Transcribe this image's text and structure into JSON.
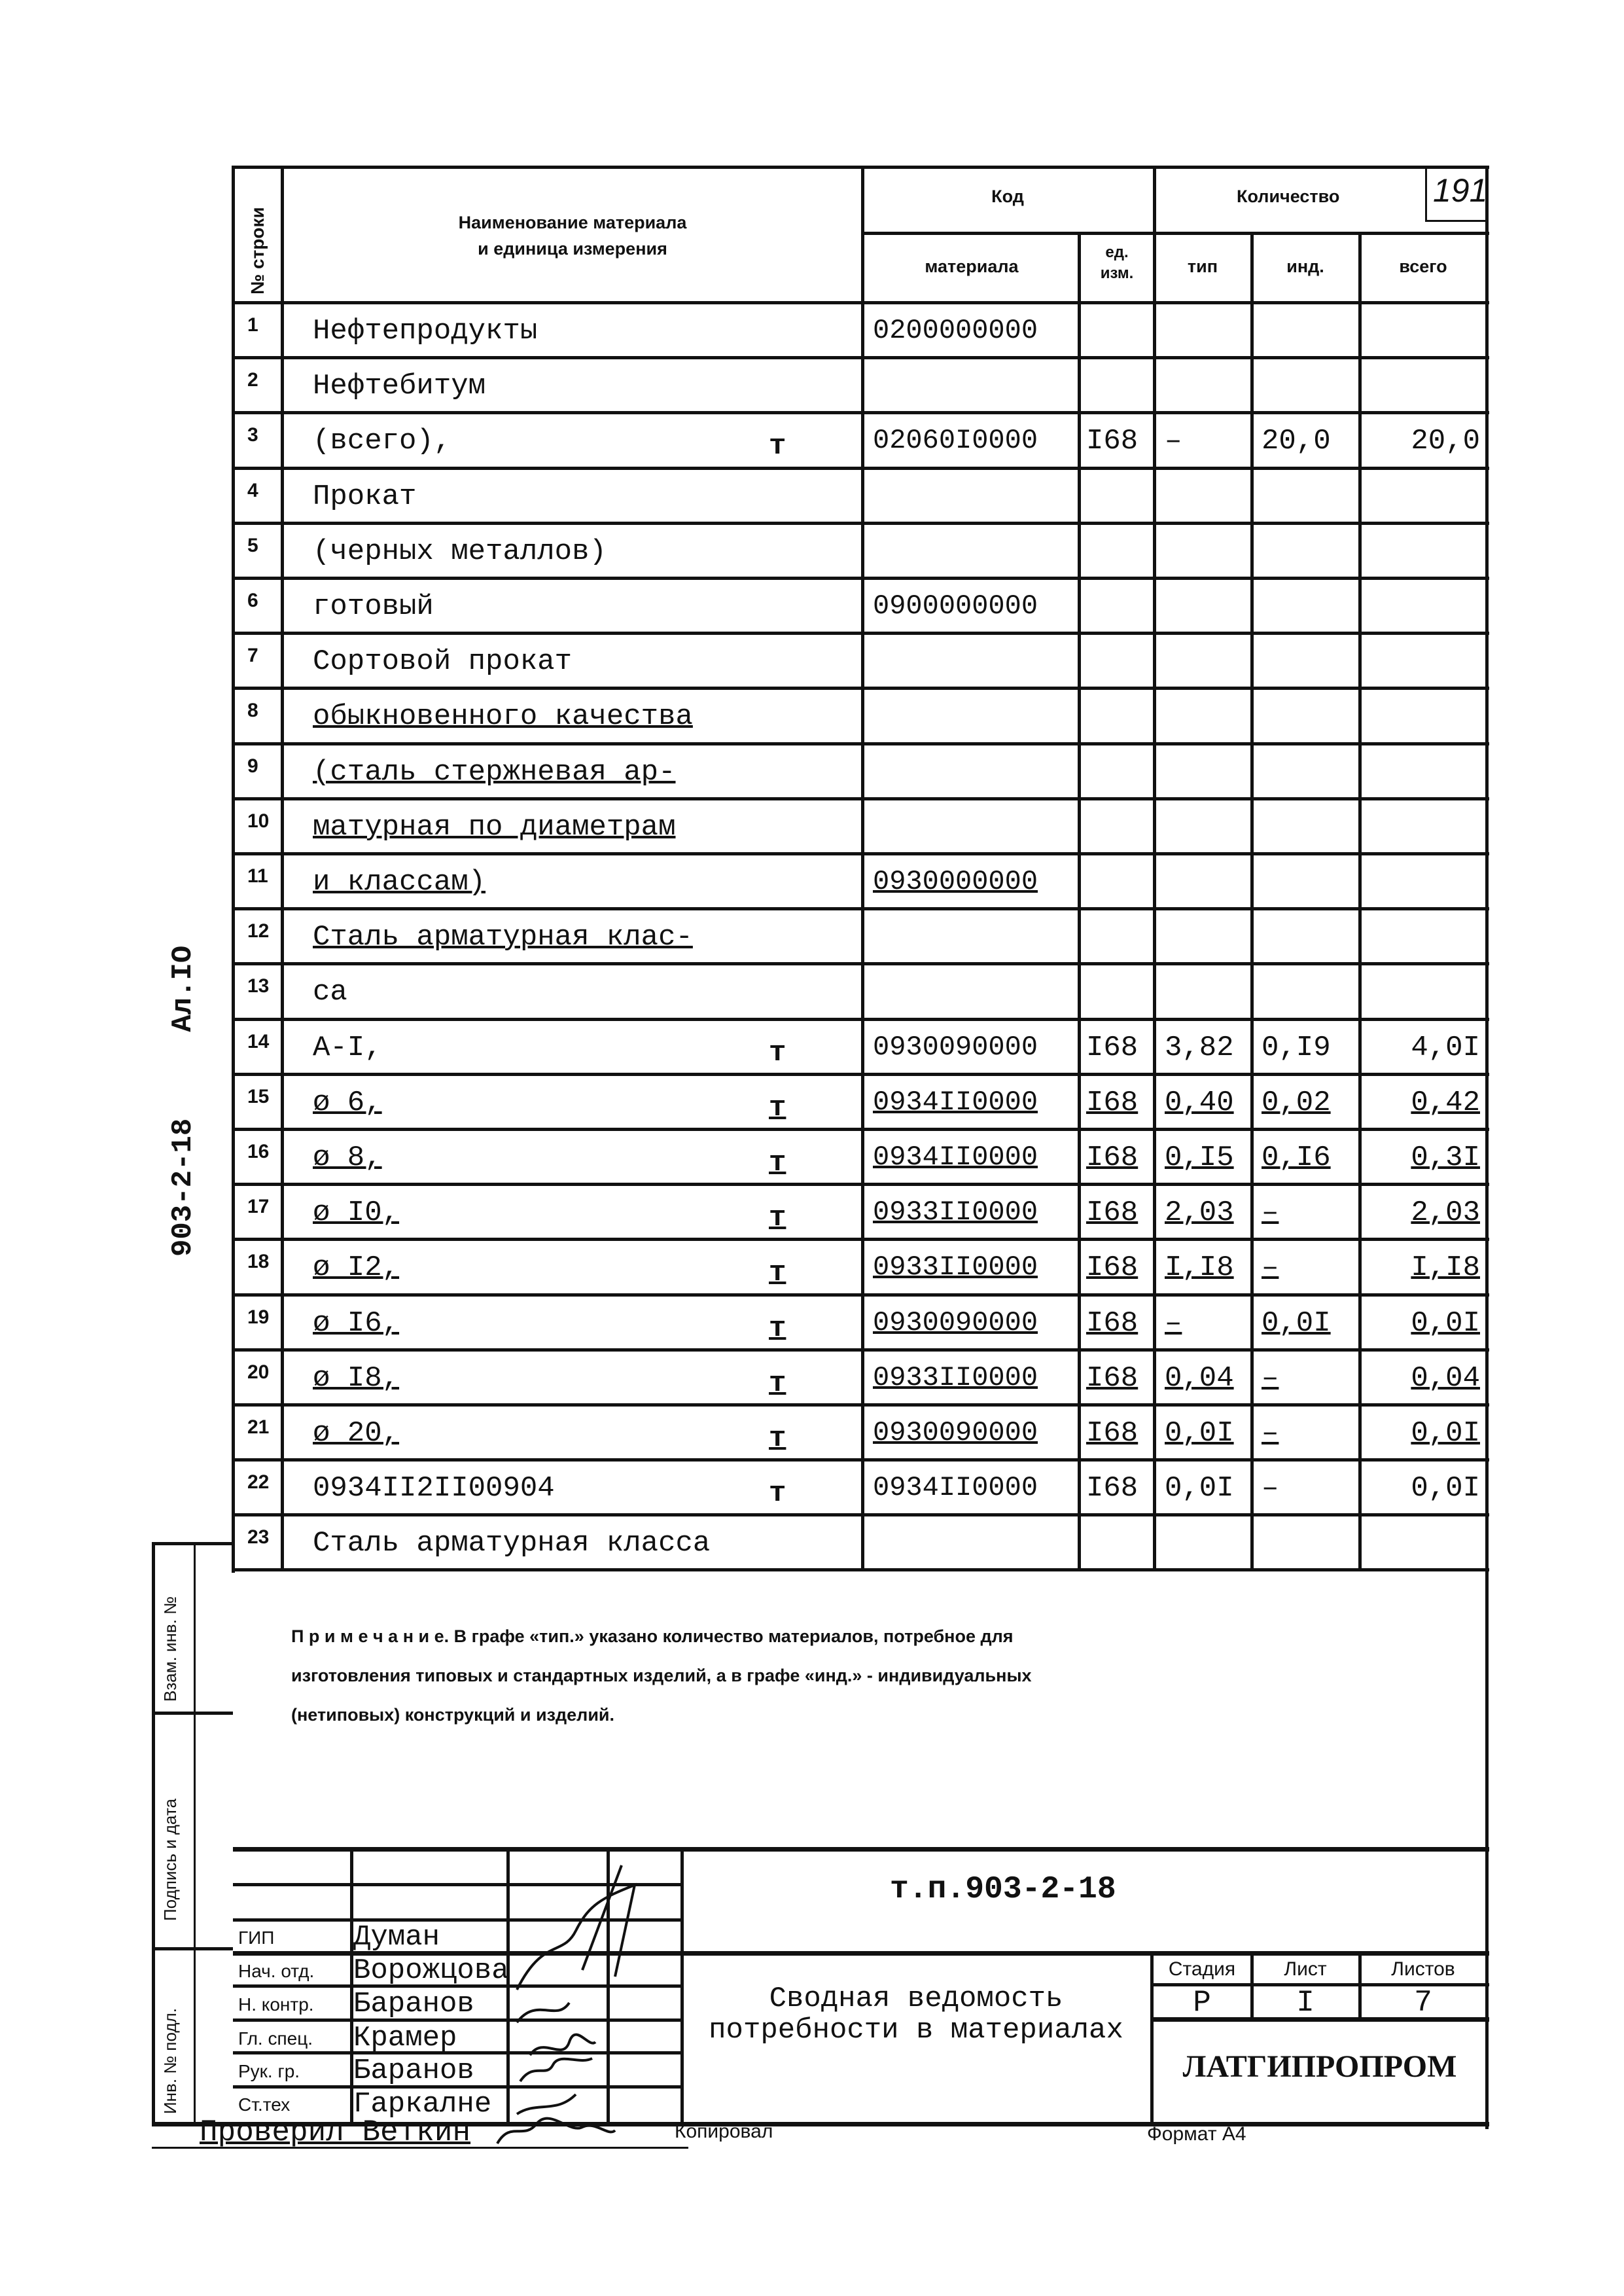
{
  "page_number": "191",
  "side_code": "903-2-18",
  "side_sheet": "Ал.IO",
  "header": {
    "row_no": "№ строки",
    "name": "Наименование материала\nи единица измерения",
    "code": "Код",
    "quantity": "Количество",
    "material": "материала",
    "unit": "ед.\nизм.",
    "typ": "тип",
    "ind": "инд.",
    "total": "всего"
  },
  "rows": [
    {
      "n": "1",
      "name": "Нефтепродукты",
      "u": "",
      "code": "0200000000",
      "unit": "",
      "typ": "",
      "ind": "",
      "total": ""
    },
    {
      "n": "2",
      "name": "Нефтебитум",
      "u": "",
      "code": "",
      "unit": "",
      "typ": "",
      "ind": "",
      "total": ""
    },
    {
      "n": "3",
      "name": "(всего),",
      "u": "т",
      "code": "02060I0000",
      "unit": "I68",
      "typ": "–",
      "ind": "20,0",
      "total": "20,0"
    },
    {
      "n": "4",
      "name": "Прокат",
      "u": "",
      "code": "",
      "unit": "",
      "typ": "",
      "ind": "",
      "total": ""
    },
    {
      "n": "5",
      "name": "(черных металлов)",
      "u": "",
      "code": "",
      "unit": "",
      "typ": "",
      "ind": "",
      "total": ""
    },
    {
      "n": "6",
      "name": "готовый",
      "u": "",
      "code": "0900000000",
      "unit": "",
      "typ": "",
      "ind": "",
      "total": ""
    },
    {
      "n": "7",
      "name": "Сортовой прокат",
      "u": "",
      "code": "",
      "unit": "",
      "typ": "",
      "ind": "",
      "total": ""
    },
    {
      "n": "8",
      "name": "обыкновенного качества",
      "u": "",
      "code": "",
      "unit": "",
      "typ": "",
      "ind": "",
      "total": ""
    },
    {
      "n": "9",
      "name": "(сталь стержневая ар-",
      "u": "",
      "code": "",
      "unit": "",
      "typ": "",
      "ind": "",
      "total": ""
    },
    {
      "n": "10",
      "name": "матурная по диаметрам",
      "u": "",
      "code": "",
      "unit": "",
      "typ": "",
      "ind": "",
      "total": ""
    },
    {
      "n": "11",
      "name": "и классам)",
      "u": "",
      "code": "0930000000",
      "unit": "",
      "typ": "",
      "ind": "",
      "total": ""
    },
    {
      "n": "12",
      "name": "Сталь арматурная клас-",
      "u": "",
      "code": "",
      "unit": "",
      "typ": "",
      "ind": "",
      "total": ""
    },
    {
      "n": "13",
      "name": "са",
      "u": "",
      "code": "",
      "unit": "",
      "typ": "",
      "ind": "",
      "total": ""
    },
    {
      "n": "14",
      "name": "А-I,",
      "u": "т",
      "code": "0930090000",
      "unit": "I68",
      "typ": "3,82",
      "ind": "0,I9",
      "total": "4,0I"
    },
    {
      "n": "15",
      "name": "ø 6,",
      "u": "т",
      "code": "0934II0000",
      "unit": "I68",
      "typ": "0,40",
      "ind": "0,02",
      "total": "0,42"
    },
    {
      "n": "16",
      "name": "ø 8,",
      "u": "т",
      "code": "0934II0000",
      "unit": "I68",
      "typ": "0,I5",
      "ind": "0,I6",
      "total": "0,3I"
    },
    {
      "n": "17",
      "name": "ø I0,",
      "u": "т",
      "code": "0933II0000",
      "unit": "I68",
      "typ": "2,03",
      "ind": "–",
      "total": "2,03"
    },
    {
      "n": "18",
      "name": "ø I2,",
      "u": "т",
      "code": "0933II0000",
      "unit": "I68",
      "typ": "I,I8",
      "ind": "–",
      "total": "I,I8"
    },
    {
      "n": "19",
      "name": "ø I6,",
      "u": "т",
      "code": "0930090000",
      "unit": "I68",
      "typ": "–",
      "ind": "0,0I",
      "total": "0,0I"
    },
    {
      "n": "20",
      "name": "ø I8,",
      "u": "т",
      "code": "0933II0000",
      "unit": "I68",
      "typ": "0,04",
      "ind": "–",
      "total": "0,04"
    },
    {
      "n": "21",
      "name": "ø 20,",
      "u": "т",
      "code": "0930090000",
      "unit": "I68",
      "typ": "0,0I",
      "ind": "–",
      "total": "0,0I"
    },
    {
      "n": "22",
      "name": "0934II2II00904",
      "u": "т",
      "code": "0934II0000",
      "unit": "I68",
      "typ": "0,0I",
      "ind": "–",
      "total": "0,0I"
    },
    {
      "n": "23",
      "name": "Сталь арматурная класса",
      "u": "",
      "code": "",
      "unit": "",
      "typ": "",
      "ind": "",
      "total": ""
    }
  ],
  "note": {
    "line1": "П р и м е ч а н и е. В графе «тип.» указано количество  материалов, потребное для",
    "line2": "изготовления типовых и  стандартных изделий, а в графе «инд.» - индивидуальных",
    "line3": "(нетиповых) конструкций и изделий."
  },
  "side_labels": {
    "zam": "Взам. инв. №",
    "podpis": "Подпись и дата",
    "inv": "Инв. № подл."
  },
  "stamp": {
    "doc_code": "т.п.903-2-18",
    "people": [
      {
        "role": "ГИП",
        "name": "Думан"
      },
      {
        "role": "Нач. отд.",
        "name": "Ворожцова"
      },
      {
        "role": "Н. контр.",
        "name": "Баранов"
      },
      {
        "role": "Гл. спец.",
        "name": "Крамер"
      },
      {
        "role": "Рук. гр.",
        "name": "Баранов"
      },
      {
        "role": "Ст.тех",
        "name": "Гаркалне"
      }
    ],
    "title": "Сводная ведомость\nпотребности в материалах",
    "stage_label": "Стадия",
    "sheet_label": "Лист",
    "sheets_label": "Листов",
    "stage": "Р",
    "sheet": "I",
    "sheets": "7",
    "org": "ЛАТГИПРОПРОМ"
  },
  "footer": {
    "checked": "Проверил Веткин",
    "copied": "Копировал",
    "format": "Формат А4"
  }
}
